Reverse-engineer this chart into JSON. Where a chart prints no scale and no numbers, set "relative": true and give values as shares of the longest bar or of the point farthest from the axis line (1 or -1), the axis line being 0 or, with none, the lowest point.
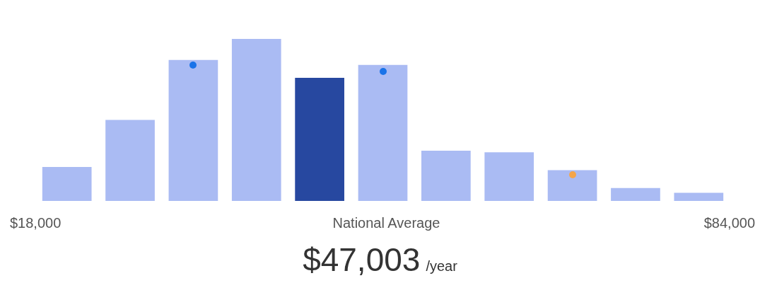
{
  "chart_data": {
    "type": "bar",
    "relative": true,
    "categories": [
      null,
      null,
      null,
      null,
      null,
      null,
      null,
      null,
      null,
      null,
      null
    ],
    "colors": [
      "#aabbf3",
      "#aabbf3",
      "#aabbf3",
      "#aabbf3",
      "#2748a0",
      "#aabbf3",
      "#aabbf3",
      "#aabbf3",
      "#aabbf3",
      "#aabbf3",
      "#aabbf3"
    ],
    "values": [
      0.21,
      0.5,
      0.87,
      1,
      0.76,
      0.84,
      0.31,
      0.3,
      0.19,
      0.08,
      0.05
    ],
    "annotations": [
      "$18,000",
      "National Average",
      "$84,000",
      "$47,003",
      "/year"
    ]
  }
}
